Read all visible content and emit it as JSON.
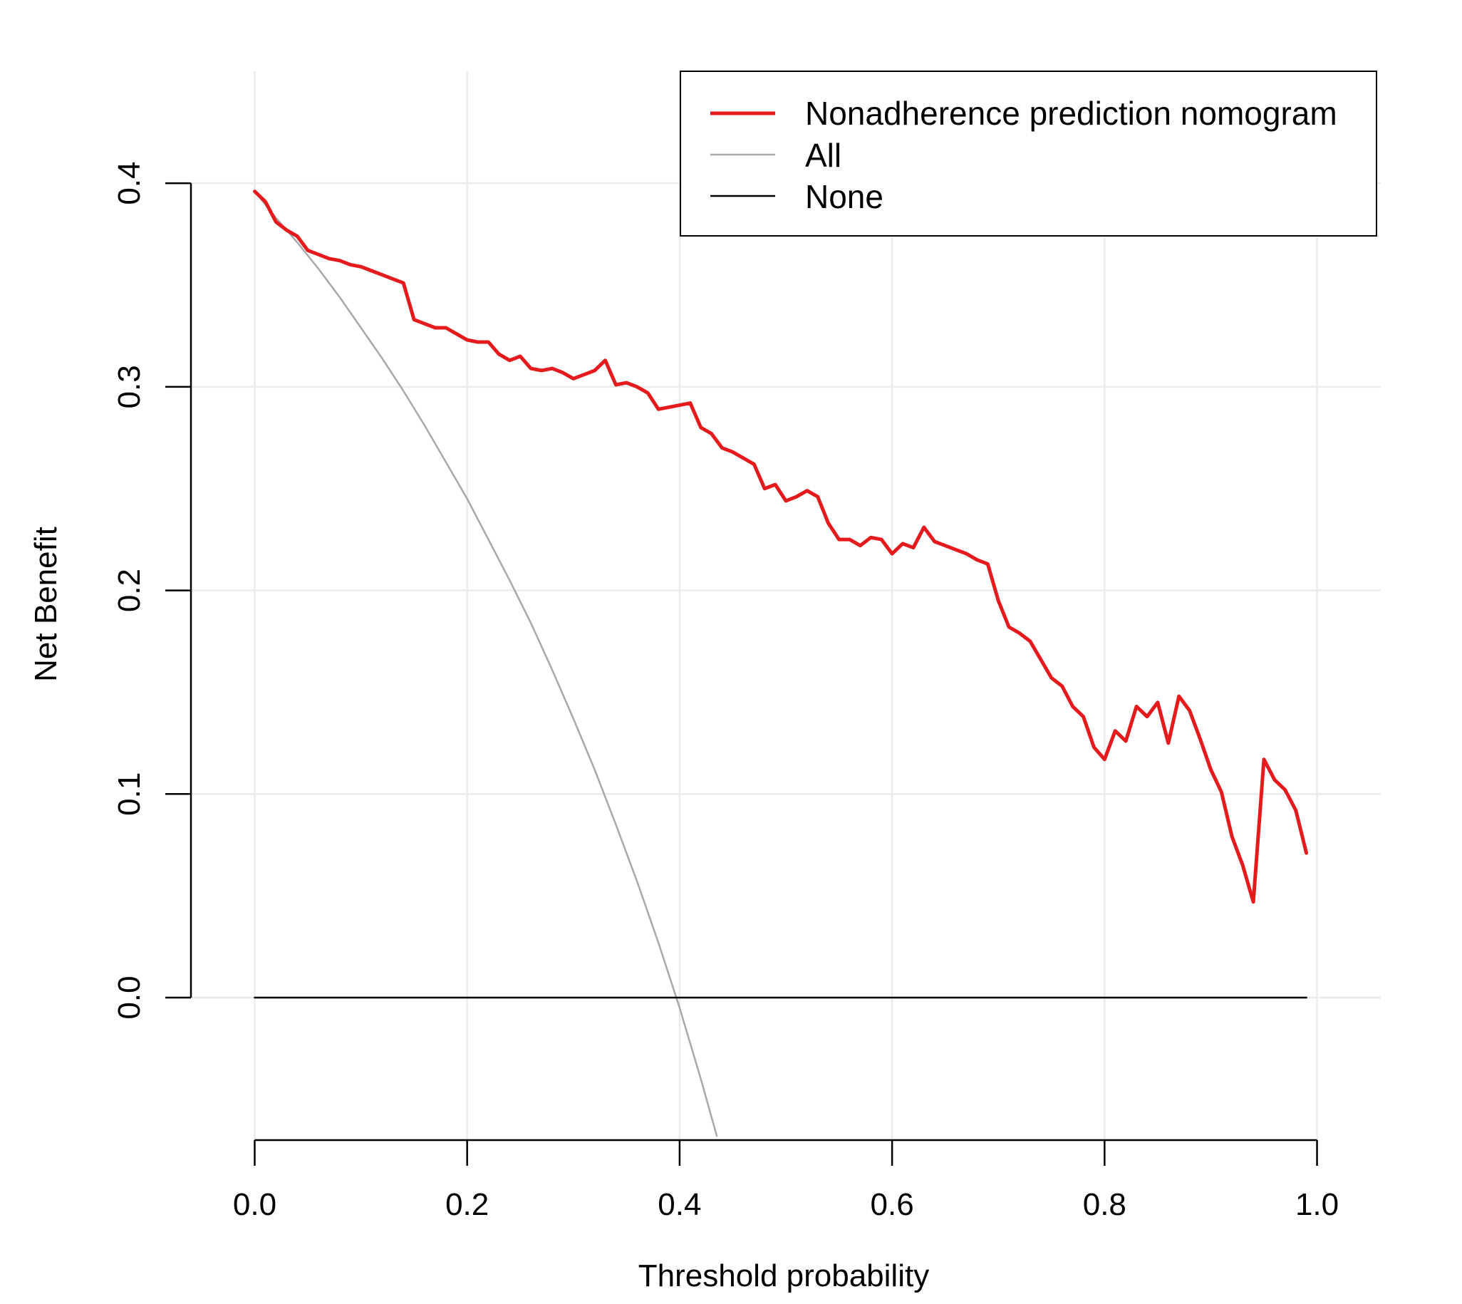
{
  "chart_data": {
    "type": "line",
    "title": "",
    "xlabel": "Threshold probability",
    "ylabel": "Net Benefit",
    "xlim": [
      -0.06,
      1.06
    ],
    "ylim": [
      -0.07,
      0.455
    ],
    "x_ticks": [
      "0.0",
      "0.2",
      "0.4",
      "0.6",
      "0.8",
      "1.0"
    ],
    "y_ticks": [
      "0.0",
      "0.1",
      "0.2",
      "0.3",
      "0.4"
    ],
    "grid": true,
    "legend_position": "top-right",
    "series": [
      {
        "name": "Nonadherence prediction nomogram",
        "color": "#e41a1c",
        "x": [
          0.0,
          0.01,
          0.02,
          0.03,
          0.04,
          0.05,
          0.06,
          0.07,
          0.08,
          0.09,
          0.1,
          0.11,
          0.12,
          0.13,
          0.14,
          0.15,
          0.16,
          0.17,
          0.18,
          0.19,
          0.2,
          0.21,
          0.22,
          0.23,
          0.24,
          0.25,
          0.26,
          0.27,
          0.28,
          0.29,
          0.3,
          0.31,
          0.32,
          0.33,
          0.34,
          0.35,
          0.36,
          0.37,
          0.38,
          0.39,
          0.4,
          0.41,
          0.42,
          0.43,
          0.44,
          0.45,
          0.46,
          0.47,
          0.48,
          0.49,
          0.5,
          0.51,
          0.52,
          0.53,
          0.54,
          0.55,
          0.56,
          0.57,
          0.58,
          0.59,
          0.6,
          0.61,
          0.62,
          0.63,
          0.64,
          0.65,
          0.66,
          0.67,
          0.68,
          0.69,
          0.7,
          0.71,
          0.72,
          0.73,
          0.74,
          0.75,
          0.76,
          0.77,
          0.78,
          0.79,
          0.8,
          0.81,
          0.82,
          0.83,
          0.84,
          0.85,
          0.86,
          0.87,
          0.88,
          0.89,
          0.9,
          0.91,
          0.92,
          0.93,
          0.94,
          0.95,
          0.96,
          0.97,
          0.98,
          0.99
        ],
        "y": [
          0.396,
          0.391,
          0.381,
          0.377,
          0.374,
          0.367,
          0.365,
          0.363,
          0.362,
          0.36,
          0.359,
          0.357,
          0.355,
          0.353,
          0.351,
          0.333,
          0.331,
          0.329,
          0.329,
          0.326,
          0.323,
          0.322,
          0.322,
          0.316,
          0.313,
          0.315,
          0.309,
          0.308,
          0.309,
          0.307,
          0.304,
          0.306,
          0.308,
          0.313,
          0.301,
          0.302,
          0.3,
          0.297,
          0.289,
          0.29,
          0.291,
          0.292,
          0.28,
          0.277,
          0.27,
          0.268,
          0.265,
          0.262,
          0.25,
          0.252,
          0.244,
          0.246,
          0.249,
          0.246,
          0.233,
          0.225,
          0.225,
          0.222,
          0.226,
          0.225,
          0.218,
          0.223,
          0.221,
          0.231,
          0.224,
          0.222,
          0.22,
          0.218,
          0.215,
          0.213,
          0.195,
          0.182,
          0.179,
          0.175,
          0.166,
          0.157,
          0.153,
          0.143,
          0.138,
          0.123,
          0.117,
          0.131,
          0.126,
          0.143,
          0.138,
          0.145,
          0.125,
          0.148,
          0.141,
          0.127,
          0.112,
          0.101,
          0.079,
          0.065,
          0.047,
          0.117,
          0.107,
          0.102,
          0.092,
          0.071
        ]
      },
      {
        "name": "All",
        "color": "#a8a8a8",
        "x": [
          0.0,
          0.02,
          0.04,
          0.06,
          0.08,
          0.1,
          0.12,
          0.14,
          0.16,
          0.18,
          0.2,
          0.22,
          0.24,
          0.26,
          0.28,
          0.3,
          0.32,
          0.34,
          0.36,
          0.38,
          0.4,
          0.42,
          0.435
        ],
        "y": [
          0.396,
          0.383,
          0.371,
          0.358,
          0.344,
          0.329,
          0.314,
          0.298,
          0.281,
          0.263,
          0.245,
          0.225,
          0.205,
          0.184,
          0.161,
          0.137,
          0.112,
          0.085,
          0.057,
          0.027,
          -0.005,
          -0.04,
          -0.068
        ]
      },
      {
        "name": "None",
        "color": "#000000",
        "x": [
          0.0,
          0.99
        ],
        "y": [
          0.0,
          0.0
        ]
      }
    ]
  }
}
